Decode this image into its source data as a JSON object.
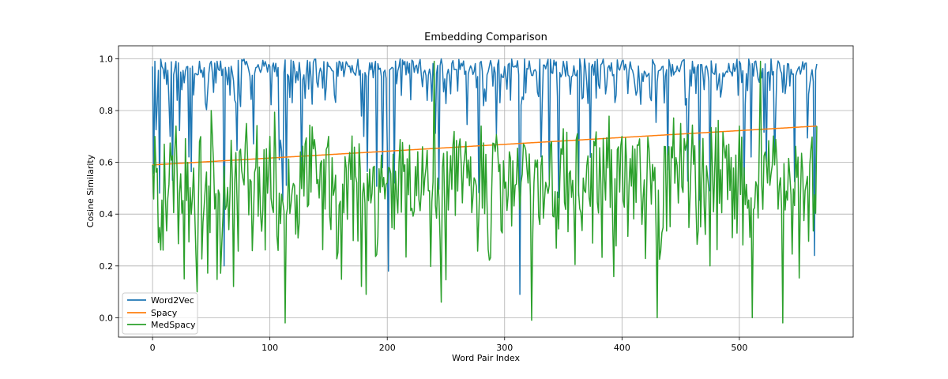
{
  "chart_data": {
    "type": "line",
    "title": "Embedding Comparison",
    "xlabel": "Word Pair Index",
    "ylabel": "Cosine Similarity",
    "xlim": [
      -29,
      597
    ],
    "ylim": [
      -0.075,
      1.05
    ],
    "xticks": [
      0,
      100,
      200,
      300,
      400,
      500
    ],
    "yticks": [
      0.0,
      0.2,
      0.4,
      0.6,
      0.8,
      1.0
    ],
    "ytick_labels": [
      "0.0",
      "0.2",
      "0.4",
      "0.6",
      "0.8",
      "1.0"
    ],
    "grid": true,
    "legend_position": "lower-left",
    "n_points": 567,
    "series": [
      {
        "name": "Word2Vec",
        "color": "#1f77b4",
        "anchor_x": [
          0,
          2,
          8,
          15,
          20,
          25,
          30,
          35,
          40,
          45,
          50,
          55,
          61,
          70,
          80,
          100,
          108,
          120,
          150,
          180,
          190,
          201,
          215,
          240,
          280,
          300,
          313,
          320,
          350,
          380,
          400,
          450,
          500,
          530,
          545,
          560,
          564,
          566
        ],
        "anchor_y": [
          0.97,
          0.99,
          0.97,
          0.7,
          0.99,
          0.88,
          0.97,
          0.86,
          0.99,
          0.83,
          0.99,
          0.99,
          0.2,
          0.84,
          0.99,
          0.97,
          0.61,
          0.99,
          0.97,
          0.7,
          0.99,
          0.18,
          0.99,
          0.92,
          0.99,
          0.97,
          0.09,
          0.96,
          0.99,
          0.9,
          0.99,
          0.97,
          0.99,
          0.6,
          0.94,
          0.9,
          0.24,
          0.98
        ],
        "fluct_min": 0.82,
        "fluct_max": 1.0
      },
      {
        "name": "Spacy",
        "color": "#ff7f0e",
        "anchor_x": [
          0,
          566
        ],
        "anchor_y": [
          0.59,
          0.74
        ]
      },
      {
        "name": "MedSpacy",
        "color": "#2ca02c",
        "anchor_x": [
          0,
          2,
          5,
          10,
          20,
          27,
          30,
          38,
          50,
          65,
          80,
          100,
          113,
          130,
          150,
          182,
          200,
          230,
          240,
          246,
          280,
          300,
          320,
          323,
          350,
          400,
          430,
          450,
          475,
          500,
          511,
          518,
          530,
          537,
          550,
          560,
          566
        ],
        "anchor_y": [
          0.59,
          0.7,
          0.29,
          0.67,
          0.74,
          0.15,
          0.6,
          0.1,
          0.8,
          0.34,
          0.75,
          0.7,
          -0.02,
          0.67,
          0.7,
          0.09,
          0.52,
          0.66,
          0.99,
          0.06,
          0.74,
          0.5,
          0.52,
          -0.01,
          0.73,
          0.7,
          0.0,
          0.75,
          0.2,
          0.74,
          0.0,
          0.99,
          0.59,
          -0.02,
          0.62,
          0.59,
          0.74
        ],
        "fluct_min": 0.18,
        "fluct_max": 0.75
      }
    ]
  }
}
